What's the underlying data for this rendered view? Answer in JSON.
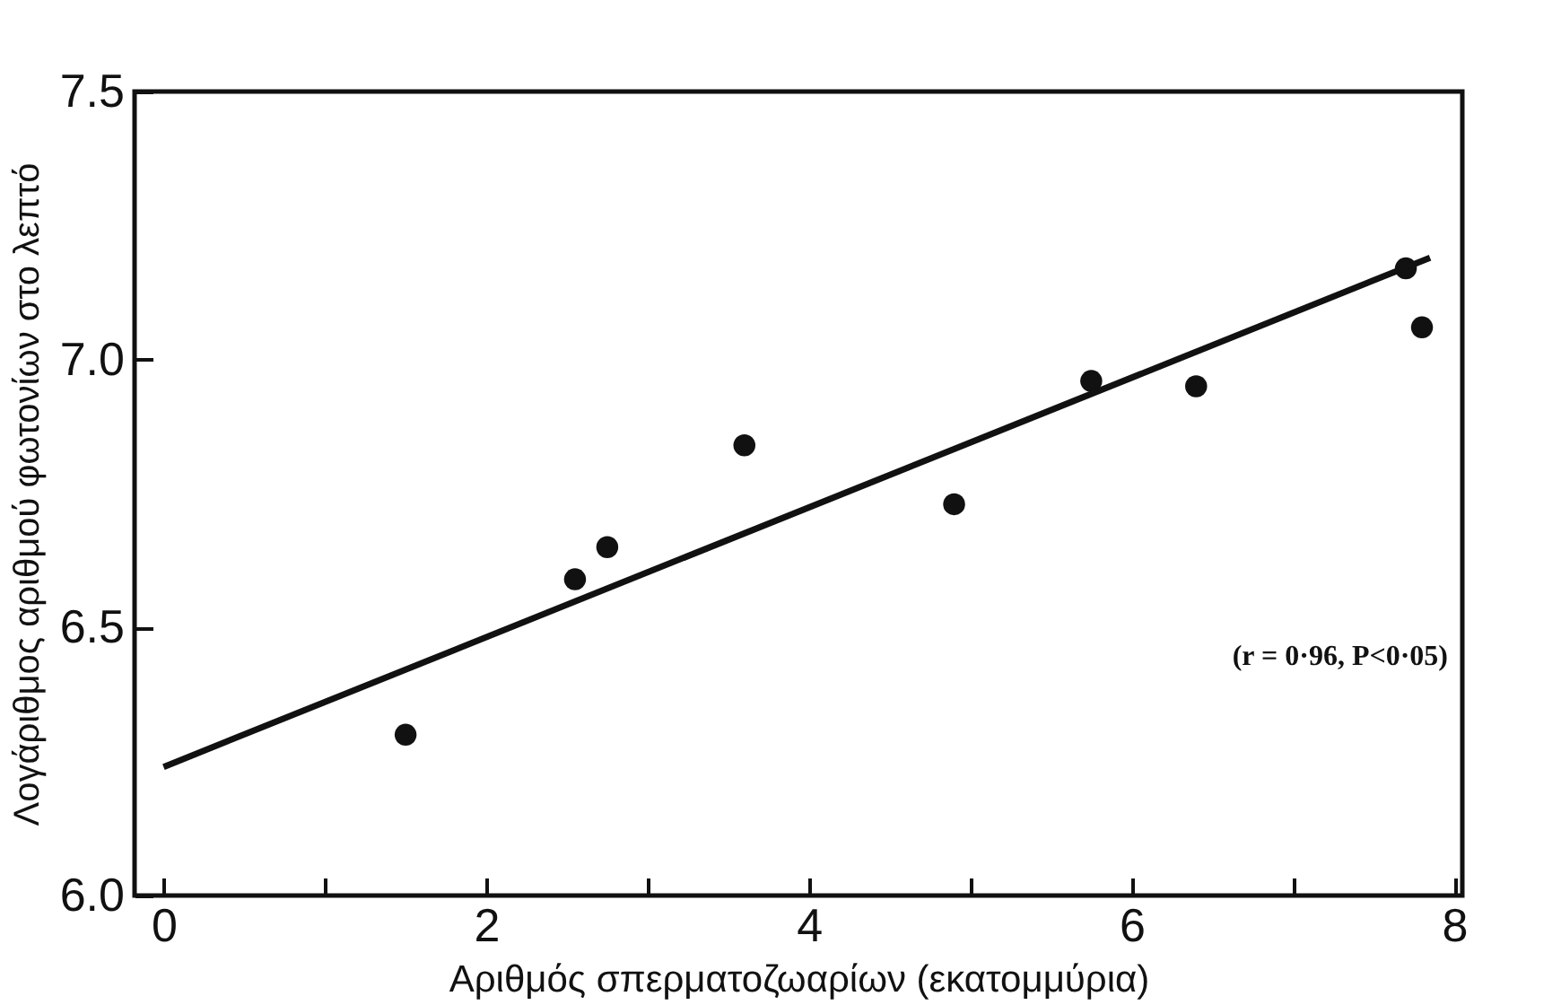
{
  "chart_data": {
    "type": "scatter",
    "xlabel": "Αριθμός σπερματοζωαρίων (εκατομμύρια)",
    "ylabel": "Λογάριθμος αριθμού φωτονίων στο λεπτό",
    "x": [
      1.5,
      2.55,
      2.75,
      3.6,
      4.9,
      5.75,
      6.4,
      7.7,
      7.8
    ],
    "series": [
      {
        "color": "#111111",
        "values": [
          6.3,
          6.59,
          6.65,
          6.84,
          6.73,
          6.96,
          6.95,
          7.17,
          7.06
        ],
        "marker": "circle"
      },
      {
        "type": "line",
        "color": "#111111",
        "x": [
          0,
          7.85
        ],
        "values": [
          6.24,
          7.19
        ],
        "marker": "none"
      }
    ],
    "xlim": [
      -0.18,
      8.05
    ],
    "ylim": [
      6.0,
      7.5
    ],
    "xticks": [
      0,
      {
        "value": 1,
        "label": null
      },
      2,
      {
        "value": 3,
        "label": null
      },
      4,
      {
        "value": 5,
        "label": null
      },
      6,
      {
        "value": 7,
        "label": null
      },
      8
    ],
    "yticks": [
      {
        "value": 6.0,
        "label": "6.0"
      },
      6.5,
      {
        "value": 7.0,
        "label": "7.0"
      },
      7.5
    ],
    "grid": false,
    "annotations": [
      "(r = 0·96, P<0·05)"
    ]
  }
}
